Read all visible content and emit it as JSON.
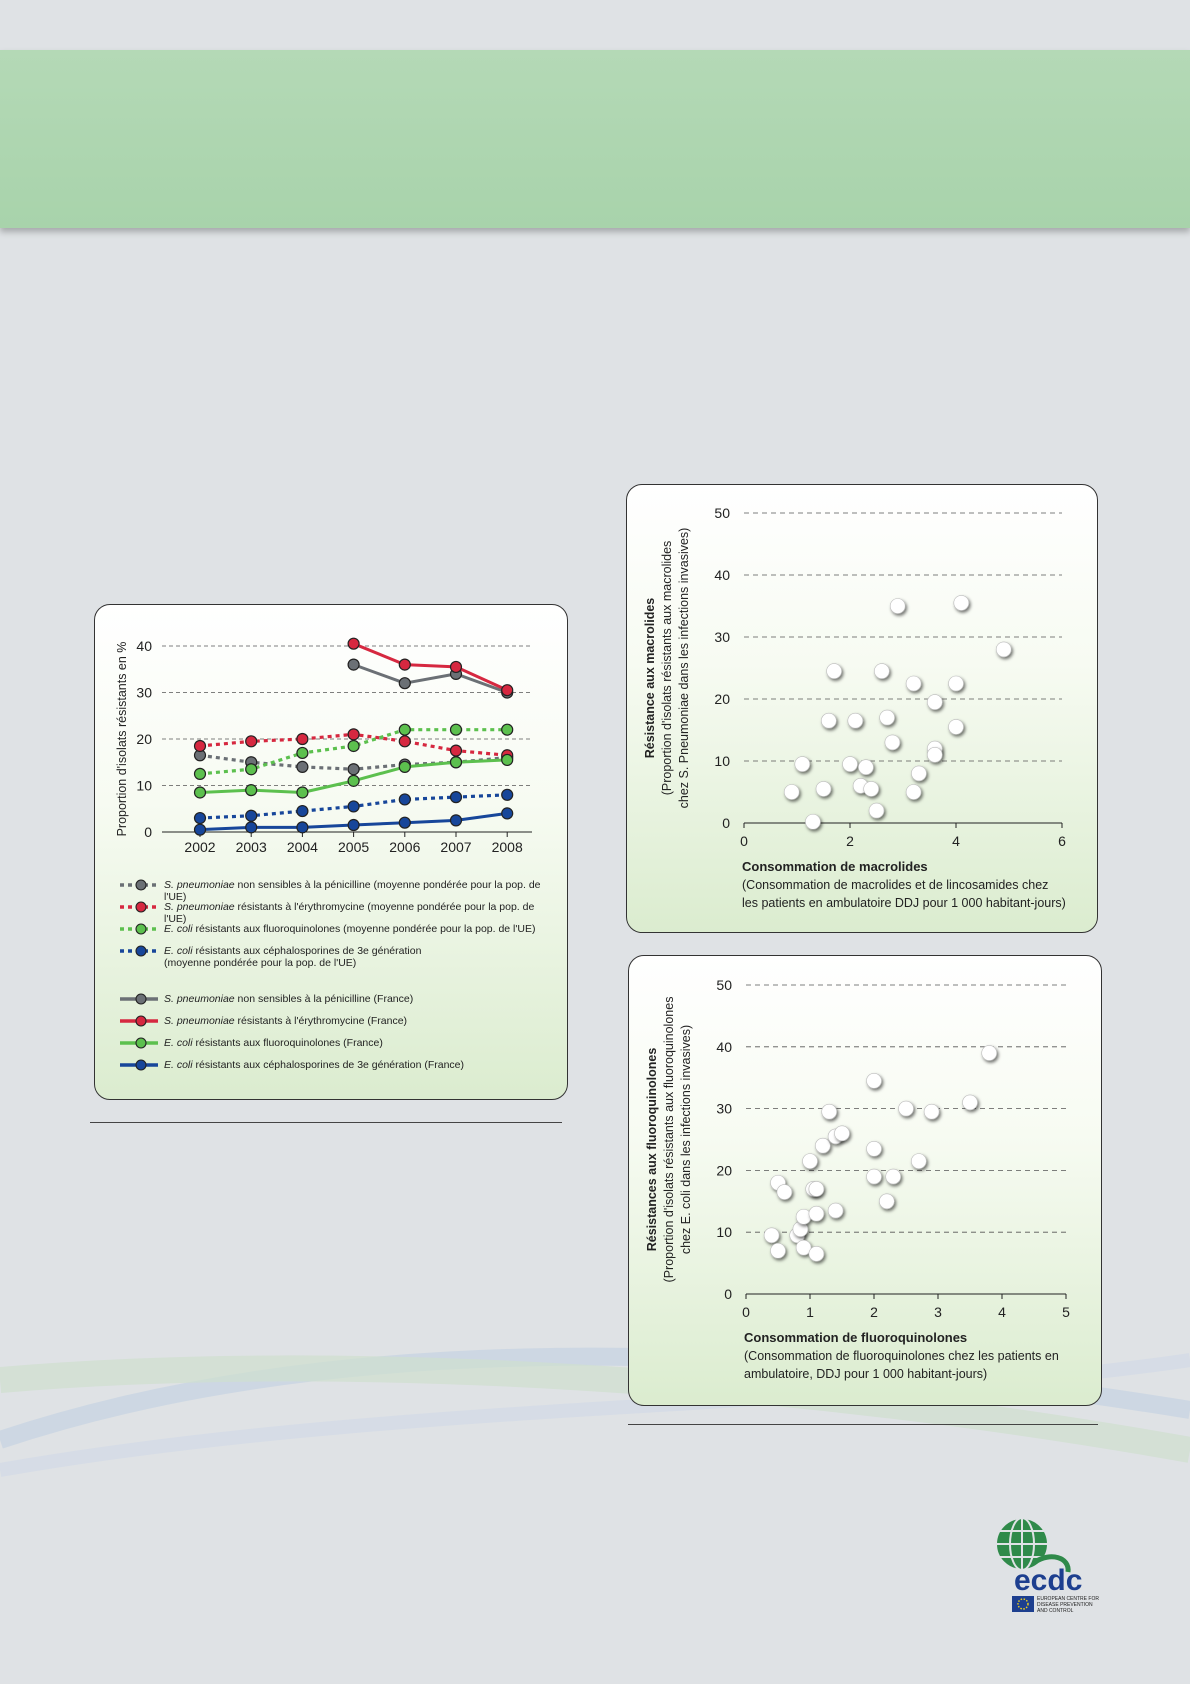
{
  "colors": {
    "background": "#dfe2e5",
    "banner": "#a8d3ab",
    "grey": "#6b7075",
    "red": "#d62840",
    "green": "#5cc04e",
    "blue": "#17469a"
  },
  "chart_data": [
    {
      "type": "line",
      "xlabel": "",
      "ylabel": "Proportion d'isolats résistants en %",
      "ylim": [
        0,
        40
      ],
      "yticks": [
        "0",
        "10",
        "20",
        "30",
        "40"
      ],
      "categories": [
        "2002",
        "2003",
        "2004",
        "2005",
        "2006",
        "2007",
        "2008"
      ],
      "grid": true,
      "series": [
        {
          "name": "S. pneumoniae non sensibles à la pénicilline (moyenne pondérée pour la pop. de l'UE)",
          "name_italic": "S. pneumoniae",
          "name_rest": " non sensibles à la pénicilline (moyenne pondérée pour la pop. de l'UE)",
          "color": "#6b7075",
          "dashed": true,
          "values": [
            16.5,
            15,
            14,
            13.5,
            14.5,
            15,
            16
          ]
        },
        {
          "name": "S. pneumoniae résistants à l'érythromycine (moyenne pondérée pour la pop. de l'UE)",
          "name_italic": "S. pneumoniae",
          "name_rest": " résistants à l'érythromycine (moyenne pondérée pour la pop. de l'UE)",
          "color": "#d62840",
          "dashed": true,
          "values": [
            18.5,
            19.5,
            20,
            21,
            19.5,
            17.5,
            16.5
          ]
        },
        {
          "name": "E. coli résistants aux fluoroquinolones (moyenne pondérée pour la pop. de l'UE)",
          "name_italic": "E. coli",
          "name_rest": " résistants aux fluoroquinolones (moyenne pondérée pour la pop. de l'UE)",
          "color": "#5cc04e",
          "dashed": true,
          "values": [
            12.5,
            13.5,
            17,
            18.5,
            22,
            22,
            22
          ]
        },
        {
          "name": "E. coli résistants aux céphalosporines de 3e génération (moyenne pondérée pour la pop. de l'UE)",
          "name_italic": "E. coli",
          "name_rest": " résistants aux céphalosporines de 3e génération",
          "name_line2": "(moyenne pondérée pour la pop. de l'UE)",
          "color": "#17469a",
          "dashed": true,
          "values": [
            3,
            3.5,
            4.5,
            5.5,
            7,
            7.5,
            8
          ]
        },
        {
          "name": "S. pneumoniae non sensibles à la pénicilline (France)",
          "name_italic": "S. pneumoniae",
          "name_rest": " non sensibles à la pénicilline (France)",
          "color": "#6b7075",
          "dashed": false,
          "values": [
            null,
            null,
            null,
            36,
            32,
            34,
            30
          ]
        },
        {
          "name": "S. pneumoniae résistants à l'érythromycine (France)",
          "name_italic": "S. pneumoniae",
          "name_rest": " résistants à l'érythromycine (France)",
          "color": "#d62840",
          "dashed": false,
          "values": [
            null,
            null,
            null,
            40.5,
            36,
            35.5,
            30.5
          ]
        },
        {
          "name": "E. coli résistants aux fluoroquinolones (France)",
          "name_italic": "E. coli",
          "name_rest": " résistants aux fluoroquinolones (France)",
          "color": "#5cc04e",
          "dashed": false,
          "values": [
            8.5,
            9,
            8.5,
            11,
            14,
            15,
            15.5
          ]
        },
        {
          "name": "E. coli résistants aux céphalosporines de 3e génération (France)",
          "name_italic": "E. coli",
          "name_rest": " résistants aux céphalosporines de 3e génération (France)",
          "color": "#17469a",
          "dashed": false,
          "values": [
            0.5,
            1,
            1,
            1.5,
            2,
            2.5,
            4
          ]
        }
      ]
    },
    {
      "type": "scatter",
      "ylabel": "Résistance aux macrolides",
      "ylabel_sub1": "(Proportion d'isolats résistants aux macrolides",
      "ylabel_sub2": "chez S. Pneumoniae dans les infections invasives)",
      "xlabel": "Consommation de macrolides",
      "xlabel_sub1": "(Consommation de macrolides et de lincosamides chez",
      "xlabel_sub2": "les patients en ambulatoire DDJ pour 1 000 habitant-jours)",
      "xlim": [
        0,
        6
      ],
      "ylim": [
        0,
        50
      ],
      "xticks": [
        "0",
        "2",
        "4",
        "6"
      ],
      "yticks": [
        "0",
        "10",
        "20",
        "30",
        "40",
        "50"
      ],
      "grid": true,
      "x": [
        0.9,
        1.1,
        1.3,
        1.5,
        1.6,
        1.7,
        2.0,
        2.1,
        2.2,
        2.3,
        2.4,
        2.5,
        2.6,
        2.7,
        2.8,
        2.9,
        3.2,
        3.2,
        3.3,
        3.6,
        3.6,
        3.6,
        4.0,
        4.0,
        4.1,
        4.9
      ],
      "y": [
        5,
        9.5,
        0.2,
        5.5,
        16.5,
        24.5,
        9.5,
        16.5,
        6,
        9,
        5.5,
        2,
        24.5,
        17,
        13,
        35,
        5,
        22.5,
        8,
        19.5,
        12,
        11,
        15.5,
        22.5,
        35.5,
        28
      ]
    },
    {
      "type": "scatter",
      "ylabel": "Résistances aux fluoroquinolones",
      "ylabel_sub1": "(Proportion d'isolats résistants aux fluoroquinolones",
      "ylabel_sub2": "chez E. coli dans les infections invasives)",
      "xlabel": "Consommation de fluoroquinolones",
      "xlabel_sub1": "(Consommation de fluoroquinolones chez les patients en",
      "xlabel_sub2": "ambulatoire, DDJ pour 1 000 habitant-jours)",
      "xlim": [
        0,
        5
      ],
      "ylim": [
        0,
        50
      ],
      "xticks": [
        "0",
        "1",
        "2",
        "3",
        "4",
        "5"
      ],
      "yticks": [
        "0",
        "10",
        "20",
        "30",
        "40",
        "50"
      ],
      "grid": true,
      "x": [
        0.4,
        0.5,
        0.5,
        0.6,
        0.8,
        0.85,
        0.9,
        0.9,
        1.0,
        1.05,
        1.1,
        1.1,
        1.1,
        1.2,
        1.3,
        1.4,
        1.4,
        1.5,
        2.0,
        2.0,
        2.0,
        2.2,
        2.3,
        2.5,
        2.7,
        2.9,
        3.5,
        3.8
      ],
      "y": [
        9.5,
        18,
        7,
        16.5,
        9.5,
        10.5,
        12.5,
        7.5,
        21.5,
        17,
        6.5,
        13,
        17,
        24,
        29.5,
        13.5,
        25.5,
        26,
        34.5,
        23.5,
        19,
        15,
        19,
        30,
        21.5,
        29.5,
        31,
        39
      ]
    }
  ],
  "logo": {
    "wordmark": "ecdc",
    "line1": "EUROPEAN CENTRE FOR",
    "line2": "DISEASE PREVENTION",
    "line3": "AND CONTROL"
  }
}
